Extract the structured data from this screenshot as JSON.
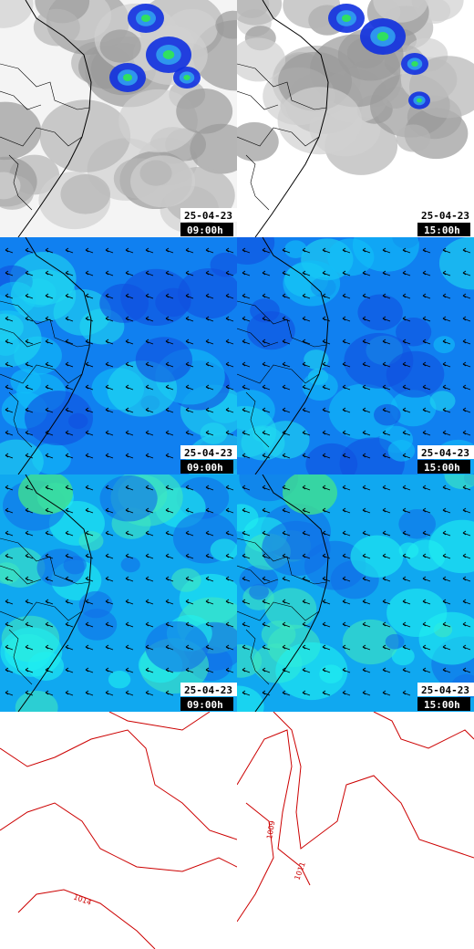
{
  "panels": [
    {
      "date": "25-04-23",
      "time": "09:00h"
    },
    {
      "date": "25-04-23",
      "time": "15:00h"
    },
    {
      "date": "25-04-23",
      "time": "09:00h"
    },
    {
      "date": "25-04-23",
      "time": "15:00h"
    },
    {
      "date": "25-04-23",
      "time": "09:00h"
    },
    {
      "date": "25-04-23",
      "time": "15:00h"
    },
    {
      "contour_labels": [
        "1014"
      ]
    },
    {
      "contour_labels": [
        "1009",
        "1011"
      ]
    }
  ]
}
